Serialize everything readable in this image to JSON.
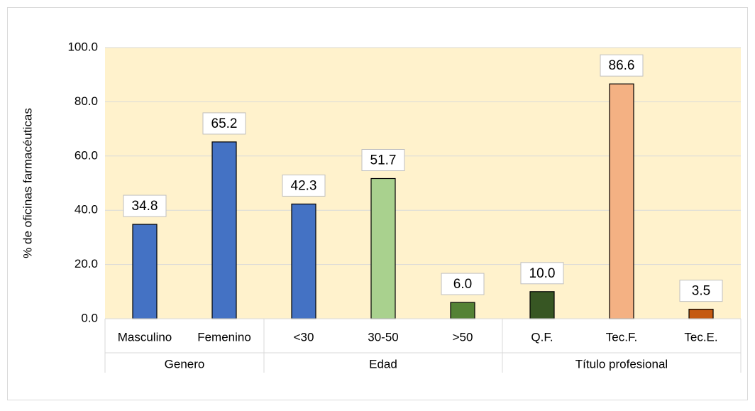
{
  "chart_data": {
    "type": "bar",
    "y_label": "% de oficinas farmacéuticas",
    "groups": [
      {
        "name": "Genero",
        "categories": [
          "Masculino",
          "Femenino"
        ],
        "values": [
          34.8,
          65.2
        ],
        "value_labels": [
          "34.8",
          "65.2"
        ],
        "colors": [
          "#4472c4",
          "#4472c4"
        ]
      },
      {
        "name": "Edad",
        "categories": [
          "<30",
          "30-50",
          ">50"
        ],
        "values": [
          42.3,
          51.7,
          6.0
        ],
        "value_labels": [
          "42.3",
          "51.7",
          "6.0"
        ],
        "colors": [
          "#4472c4",
          "#a9d18e",
          "#548235"
        ]
      },
      {
        "name": "Título profesional",
        "categories": [
          "Q.F.",
          "Tec.F.",
          "Tec.E."
        ],
        "values": [
          10.0,
          86.6,
          3.5
        ],
        "value_labels": [
          "10.0",
          "86.6",
          "3.5"
        ],
        "colors": [
          "#375623",
          "#f4b183",
          "#c55a11"
        ]
      }
    ],
    "ylim": [
      0,
      100
    ],
    "yticks": [
      {
        "value": 0,
        "label": "0.0"
      },
      {
        "value": 20,
        "label": "20.0"
      },
      {
        "value": 40,
        "label": "40.0"
      },
      {
        "value": 60,
        "label": "60.0"
      },
      {
        "value": 80,
        "label": "80.0"
      },
      {
        "value": 100,
        "label": "100.0"
      }
    ],
    "grid": true,
    "plot_background": "#fff2cc"
  }
}
